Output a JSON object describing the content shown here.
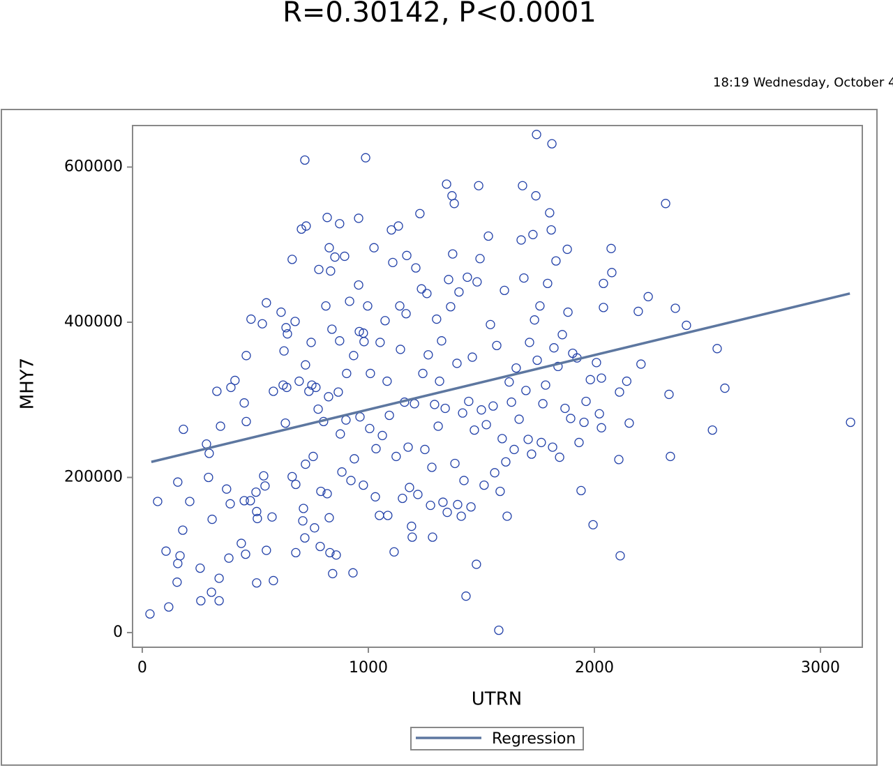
{
  "chart_data": {
    "type": "scatter",
    "title": "R=0.30142, P<0.0001",
    "timestamp": "18:19 Wednesday, October 4",
    "x_label": "UTRN",
    "y_label": "MHY7",
    "color": "#2140a8",
    "x": [
      34,
      117,
      68,
      105,
      157,
      154,
      167,
      179,
      182,
      157,
      210,
      256,
      259,
      284,
      296,
      293,
      309,
      306,
      340,
      340,
      330,
      346,
      373,
      392,
      410,
      389,
      383,
      438,
      451,
      457,
      451,
      460,
      460,
      481,
      478,
      503,
      506,
      506,
      509,
      531,
      537,
      543,
      549,
      549,
      574,
      580,
      580,
      614,
      623,
      627,
      633,
      636,
      639,
      642,
      663,
      663,
      676,
      679,
      679,
      694,
      704,
      710,
      713,
      719,
      719,
      722,
      725,
      722,
      737,
      747,
      750,
      756,
      762,
      768,
      778,
      781,
      787,
      790,
      802,
      812,
      818,
      818,
      824,
      827,
      827,
      830,
      833,
      842,
      839,
      852,
      858,
      867,
      873,
      873,
      876,
      883,
      895,
      904,
      901,
      917,
      923,
      932,
      938,
      935,
      957,
      957,
      960,
      963,
      978,
      978,
      988,
      981,
      997,
      1006,
      1009,
      1025,
      1031,
      1034,
      1049,
      1052,
      1062,
      1074,
      1083,
      1086,
      1093,
      1102,
      1108,
      1114,
      1123,
      1133,
      1139,
      1142,
      1151,
      1160,
      1167,
      1170,
      1176,
      1182,
      1191,
      1194,
      1204,
      1210,
      1219,
      1228,
      1235,
      1241,
      1250,
      1259,
      1265,
      1275,
      1281,
      1284,
      1293,
      1302,
      1309,
      1315,
      1324,
      1330,
      1340,
      1346,
      1349,
      1355,
      1364,
      1370,
      1373,
      1380,
      1383,
      1392,
      1395,
      1401,
      1411,
      1417,
      1423,
      1432,
      1438,
      1444,
      1454,
      1460,
      1469,
      1478,
      1481,
      1488,
      1494,
      1500,
      1512,
      1522,
      1531,
      1540,
      1552,
      1559,
      1568,
      1577,
      1583,
      1592,
      1602,
      1608,
      1614,
      1623,
      1633,
      1645,
      1654,
      1667,
      1676,
      1682,
      1688,
      1697,
      1707,
      1713,
      1722,
      1728,
      1735,
      1741,
      1744,
      1747,
      1759,
      1765,
      1772,
      1784,
      1793,
      1802,
      1809,
      1812,
      1815,
      1821,
      1830,
      1839,
      1846,
      1858,
      1870,
      1880,
      1883,
      1895,
      1904,
      1923,
      1932,
      1941,
      1954,
      1963,
      1982,
      1994,
      2009,
      2022,
      2031,
      2031,
      2040,
      2040,
      2074,
      2077,
      2108,
      2111,
      2114,
      2143,
      2154,
      2194,
      2206,
      2238,
      2315,
      2330,
      2336,
      2358,
      2407,
      2522,
      2543,
      2577,
      3133
    ],
    "y": [
      24000,
      33000,
      169000,
      105000,
      89000,
      65000,
      99000,
      132000,
      262000,
      194000,
      169000,
      83000,
      41000,
      243000,
      231000,
      200000,
      146000,
      52000,
      70000,
      41000,
      311000,
      266000,
      185000,
      316000,
      325000,
      166000,
      96000,
      115000,
      170000,
      101000,
      296000,
      272000,
      357000,
      404000,
      170000,
      181000,
      156000,
      64000,
      147000,
      398000,
      202000,
      189000,
      425000,
      106000,
      149000,
      311000,
      67000,
      413000,
      319000,
      363000,
      270000,
      393000,
      316000,
      385000,
      201000,
      481000,
      401000,
      191000,
      103000,
      324000,
      520000,
      144000,
      160000,
      122000,
      609000,
      345000,
      524000,
      217000,
      311000,
      374000,
      319000,
      227000,
      135000,
      316000,
      288000,
      468000,
      111000,
      182000,
      272000,
      421000,
      535000,
      179000,
      304000,
      496000,
      148000,
      103000,
      466000,
      76000,
      391000,
      484000,
      100000,
      310000,
      527000,
      376000,
      256000,
      207000,
      485000,
      334000,
      274000,
      427000,
      196000,
      77000,
      224000,
      357000,
      534000,
      448000,
      388000,
      278000,
      386000,
      190000,
      612000,
      375000,
      421000,
      263000,
      334000,
      496000,
      175000,
      237000,
      151000,
      374000,
      254000,
      402000,
      324000,
      151000,
      280000,
      519000,
      477000,
      104000,
      227000,
      524000,
      421000,
      365000,
      173000,
      297000,
      411000,
      486000,
      239000,
      187000,
      137000,
      123000,
      295000,
      470000,
      178000,
      540000,
      443000,
      334000,
      236000,
      437000,
      358000,
      164000,
      213000,
      123000,
      294000,
      404000,
      266000,
      324000,
      376000,
      168000,
      289000,
      578000,
      155000,
      455000,
      420000,
      563000,
      488000,
      553000,
      218000,
      347000,
      165000,
      439000,
      150000,
      283000,
      196000,
      47000,
      458000,
      298000,
      162000,
      355000,
      261000,
      88000,
      452000,
      576000,
      482000,
      287000,
      190000,
      268000,
      511000,
      397000,
      292000,
      206000,
      370000,
      3000,
      182000,
      250000,
      441000,
      220000,
      150000,
      323000,
      297000,
      236000,
      341000,
      275000,
      506000,
      576000,
      457000,
      312000,
      249000,
      374000,
      230000,
      513000,
      403000,
      563000,
      642000,
      351000,
      421000,
      245000,
      295000,
      319000,
      450000,
      541000,
      519000,
      630000,
      239000,
      367000,
      479000,
      343000,
      226000,
      384000,
      289000,
      494000,
      413000,
      276000,
      360000,
      354000,
      245000,
      183000,
      271000,
      298000,
      326000,
      139000,
      348000,
      282000,
      264000,
      328000,
      450000,
      419000,
      495000,
      464000,
      223000,
      310000,
      99000,
      324000,
      270000,
      414000,
      346000,
      433000,
      553000,
      307000,
      227000,
      418000,
      396000,
      261000,
      366000,
      315000,
      271000
    ],
    "regression": {
      "name": "Regression",
      "color": "#5d77a0",
      "x": [
        40,
        3130
      ],
      "y": [
        220000,
        437000
      ]
    },
    "xlim": [
      -43,
      3185
    ],
    "xticks": [
      0,
      1000,
      2000,
      3000
    ],
    "ylim": [
      -18900,
      653500
    ],
    "yticks": [
      0,
      200000,
      400000,
      600000
    ],
    "legend": "bottom"
  }
}
